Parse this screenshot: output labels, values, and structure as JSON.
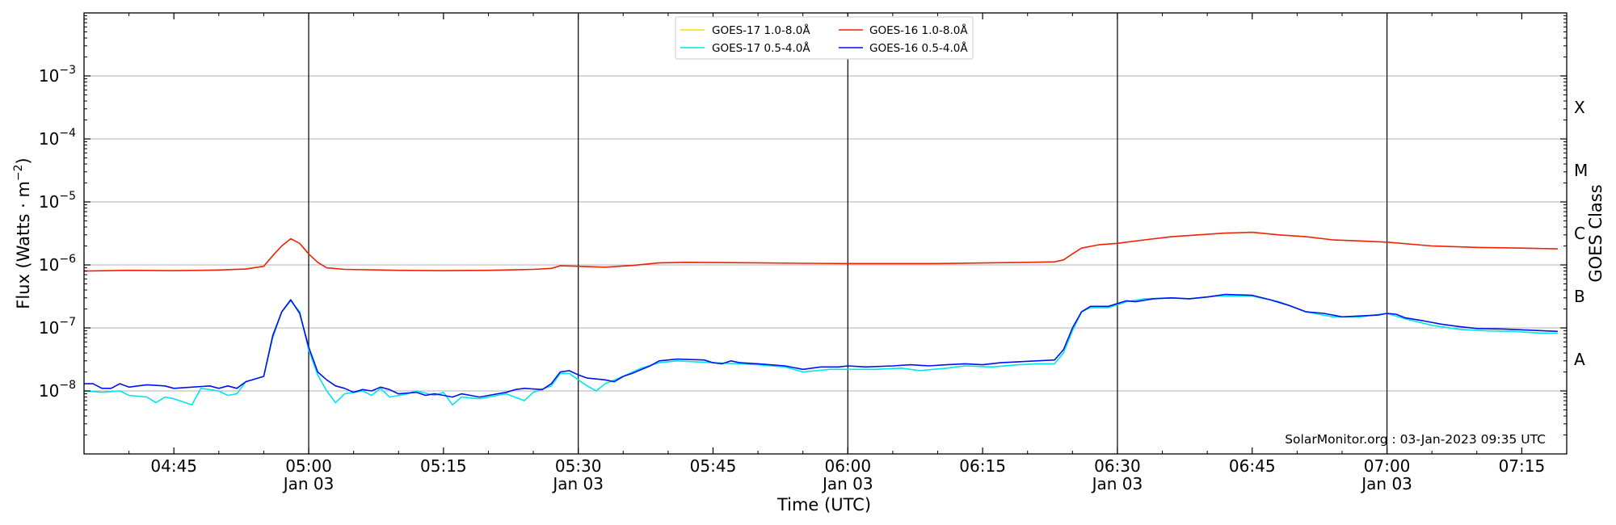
{
  "chart_data": {
    "type": "line",
    "x_start": "04:35",
    "x_end": "07:20",
    "xlim": [
      "2023-01-03 04:35",
      "2023-01-03 07:20"
    ],
    "ylim": [
      1e-09,
      0.01
    ],
    "yscale": "log",
    "ylabel": "Flux (Watts · m⁻²)",
    "ylabel_parts": [
      "Flux (Watts · m",
      "−2",
      ")"
    ],
    "xlabel": "Time (UTC)",
    "right_label": "GOES Class",
    "grid": "horizontal at decades",
    "legend_position": "top-center",
    "credit": "SolarMonitor.org : 03-Jan-2023 09:35 UTC",
    "x_ticks": [
      {
        "time": "04:45",
        "label": "04:45",
        "date": ""
      },
      {
        "time": "05:00",
        "label": "05:00",
        "date": "Jan 03"
      },
      {
        "time": "05:15",
        "label": "05:15",
        "date": ""
      },
      {
        "time": "05:30",
        "label": "05:30",
        "date": "Jan 03"
      },
      {
        "time": "05:45",
        "label": "05:45",
        "date": ""
      },
      {
        "time": "06:00",
        "label": "06:00",
        "date": "Jan 03"
      },
      {
        "time": "06:15",
        "label": "06:15",
        "date": ""
      },
      {
        "time": "06:30",
        "label": "06:30",
        "date": "Jan 03"
      },
      {
        "time": "06:45",
        "label": "06:45",
        "date": ""
      },
      {
        "time": "07:00",
        "label": "07:00",
        "date": "Jan 03"
      },
      {
        "time": "07:15",
        "label": "07:15",
        "date": ""
      }
    ],
    "day_lines": [
      "05:00",
      "05:30",
      "06:00",
      "06:30",
      "07:00"
    ],
    "y_ticks": [
      {
        "value": 0.001,
        "base": "10",
        "exp": "−3"
      },
      {
        "value": 0.0001,
        "base": "10",
        "exp": "−4"
      },
      {
        "value": 1e-05,
        "base": "10",
        "exp": "−5"
      },
      {
        "value": 1e-06,
        "base": "10",
        "exp": "−6"
      },
      {
        "value": 1e-07,
        "base": "10",
        "exp": "−7"
      },
      {
        "value": 1e-08,
        "base": "10",
        "exp": "−8"
      }
    ],
    "goes_classes": [
      {
        "label": "X",
        "value": 0.000316
      },
      {
        "label": "M",
        "value": 3.16e-05
      },
      {
        "label": "C",
        "value": 3.16e-06
      },
      {
        "label": "B",
        "value": 3.16e-07
      },
      {
        "label": "A",
        "value": 3.16e-08
      }
    ],
    "series": [
      {
        "name": "GOES-17 1.0-8.0Å",
        "color": "#ffd700",
        "points": []
      },
      {
        "name": "GOES-17 0.5-4.0Å",
        "color": "#00e5ee",
        "points": [
          [
            "04:35",
            1e-08
          ],
          [
            "04:37",
            9.5e-09
          ],
          [
            "04:39",
            1e-08
          ],
          [
            "04:40",
            8.5e-09
          ],
          [
            "04:42",
            8e-09
          ],
          [
            "04:43",
            6.5e-09
          ],
          [
            "04:44",
            8e-09
          ],
          [
            "04:45",
            7.5e-09
          ],
          [
            "04:47",
            6e-09
          ],
          [
            "04:48",
            1.1e-08
          ],
          [
            "04:50",
            1e-08
          ],
          [
            "04:51",
            8.5e-09
          ],
          [
            "04:52",
            9e-09
          ],
          [
            "04:53",
            1.4e-08
          ],
          [
            "04:55",
            1.7e-08
          ],
          [
            "04:56",
            7e-08
          ],
          [
            "04:57",
            1.8e-07
          ],
          [
            "04:58",
            2.7e-07
          ],
          [
            "04:59",
            1.8e-07
          ],
          [
            "05:00",
            4.5e-08
          ],
          [
            "05:01",
            1.8e-08
          ],
          [
            "05:02",
            1e-08
          ],
          [
            "05:03",
            6.5e-09
          ],
          [
            "05:04",
            9e-09
          ],
          [
            "05:06",
            1e-08
          ],
          [
            "05:07",
            8.5e-09
          ],
          [
            "05:08",
            1.1e-08
          ],
          [
            "05:09",
            8e-09
          ],
          [
            "05:11",
            9e-09
          ],
          [
            "05:12",
            1e-08
          ],
          [
            "05:14",
            8.5e-09
          ],
          [
            "05:15",
            9.5e-09
          ],
          [
            "05:16",
            6e-09
          ],
          [
            "05:17",
            8e-09
          ],
          [
            "05:19",
            7.5e-09
          ],
          [
            "05:21",
            8.5e-09
          ],
          [
            "05:22",
            9e-09
          ],
          [
            "05:24",
            7e-09
          ],
          [
            "05:25",
            9.5e-09
          ],
          [
            "05:27",
            1.2e-08
          ],
          [
            "05:28",
            1.9e-08
          ],
          [
            "05:29",
            1.9e-08
          ],
          [
            "05:30",
            1.5e-08
          ],
          [
            "05:31",
            1.2e-08
          ],
          [
            "05:32",
            1e-08
          ],
          [
            "05:33",
            1.3e-08
          ],
          [
            "05:35",
            1.7e-08
          ],
          [
            "05:37",
            2.3e-08
          ],
          [
            "05:39",
            2.8e-08
          ],
          [
            "05:41",
            3e-08
          ],
          [
            "05:45",
            2.8e-08
          ],
          [
            "05:48",
            2.7e-08
          ],
          [
            "05:50",
            2.6e-08
          ],
          [
            "05:53",
            2.4e-08
          ],
          [
            "05:55",
            2e-08
          ],
          [
            "05:58",
            2.2e-08
          ],
          [
            "06:00",
            2.2e-08
          ],
          [
            "06:03",
            2.2e-08
          ],
          [
            "06:06",
            2.3e-08
          ],
          [
            "06:08",
            2.1e-08
          ],
          [
            "06:11",
            2.3e-08
          ],
          [
            "06:13",
            2.5e-08
          ],
          [
            "06:16",
            2.4e-08
          ],
          [
            "06:19",
            2.6e-08
          ],
          [
            "06:21",
            2.7e-08
          ],
          [
            "06:23",
            2.7e-08
          ],
          [
            "06:24",
            4e-08
          ],
          [
            "06:25",
            9e-08
          ],
          [
            "06:26",
            1.8e-07
          ],
          [
            "06:27",
            2.1e-07
          ],
          [
            "06:29",
            2.1e-07
          ],
          [
            "06:31",
            2.6e-07
          ],
          [
            "06:33",
            2.9e-07
          ],
          [
            "06:36",
            3e-07
          ],
          [
            "06:38",
            2.9e-07
          ],
          [
            "06:41",
            3.2e-07
          ],
          [
            "06:45",
            3.2e-07
          ],
          [
            "06:48",
            2.6e-07
          ],
          [
            "06:51",
            1.8e-07
          ],
          [
            "06:54",
            1.5e-07
          ],
          [
            "06:57",
            1.5e-07
          ],
          [
            "07:00",
            1.7e-07
          ],
          [
            "07:02",
            1.4e-07
          ],
          [
            "07:05",
            1.1e-07
          ],
          [
            "07:08",
            9.5e-08
          ],
          [
            "07:11",
            9e-08
          ],
          [
            "07:14",
            8.8e-08
          ],
          [
            "07:17",
            8.3e-08
          ],
          [
            "07:19",
            8.2e-08
          ]
        ]
      },
      {
        "name": "GOES-16 1.0-8.0Å",
        "color": "#ee2200",
        "points": [
          [
            "04:35",
            8e-07
          ],
          [
            "04:40",
            8.2e-07
          ],
          [
            "04:45",
            8.1e-07
          ],
          [
            "04:50",
            8.3e-07
          ],
          [
            "04:53",
            8.6e-07
          ],
          [
            "04:55",
            9.5e-07
          ],
          [
            "04:56",
            1.4e-06
          ],
          [
            "04:57",
            2e-06
          ],
          [
            "04:58",
            2.6e-06
          ],
          [
            "04:59",
            2.2e-06
          ],
          [
            "05:00",
            1.5e-06
          ],
          [
            "05:01",
            1.1e-06
          ],
          [
            "05:02",
            9e-07
          ],
          [
            "05:04",
            8.5e-07
          ],
          [
            "05:10",
            8.2e-07
          ],
          [
            "05:15",
            8.1e-07
          ],
          [
            "05:20",
            8.2e-07
          ],
          [
            "05:25",
            8.5e-07
          ],
          [
            "05:27",
            8.8e-07
          ],
          [
            "05:28",
            9.7e-07
          ],
          [
            "05:30",
            9.5e-07
          ],
          [
            "05:33",
            9.2e-07
          ],
          [
            "05:36",
            9.8e-07
          ],
          [
            "05:39",
            1.08e-06
          ],
          [
            "05:42",
            1.1e-06
          ],
          [
            "05:50",
            1.08e-06
          ],
          [
            "05:55",
            1.06e-06
          ],
          [
            "06:00",
            1.05e-06
          ],
          [
            "06:10",
            1.05e-06
          ],
          [
            "06:20",
            1.1e-06
          ],
          [
            "06:23",
            1.12e-06
          ],
          [
            "06:24",
            1.2e-06
          ],
          [
            "06:25",
            1.5e-06
          ],
          [
            "06:26",
            1.85e-06
          ],
          [
            "06:28",
            2.1e-06
          ],
          [
            "06:30",
            2.2e-06
          ],
          [
            "06:33",
            2.5e-06
          ],
          [
            "06:36",
            2.8e-06
          ],
          [
            "06:39",
            3e-06
          ],
          [
            "06:42",
            3.2e-06
          ],
          [
            "06:45",
            3.3e-06
          ],
          [
            "06:48",
            3e-06
          ],
          [
            "06:51",
            2.8e-06
          ],
          [
            "06:54",
            2.5e-06
          ],
          [
            "06:57",
            2.4e-06
          ],
          [
            "07:00",
            2.3e-06
          ],
          [
            "07:05",
            2e-06
          ],
          [
            "07:10",
            1.9e-06
          ],
          [
            "07:15",
            1.85e-06
          ],
          [
            "07:19",
            1.8e-06
          ]
        ]
      },
      {
        "name": "GOES-16 0.5-4.0Å",
        "color": "#0011ee",
        "points": [
          [
            "04:35",
            1.3e-08
          ],
          [
            "04:36",
            1.3e-08
          ],
          [
            "04:37",
            1.1e-08
          ],
          [
            "04:38",
            1.1e-08
          ],
          [
            "04:39",
            1.3e-08
          ],
          [
            "04:40",
            1.15e-08
          ],
          [
            "04:41",
            1.2e-08
          ],
          [
            "04:42",
            1.25e-08
          ],
          [
            "04:44",
            1.2e-08
          ],
          [
            "04:45",
            1.1e-08
          ],
          [
            "04:47",
            1.15e-08
          ],
          [
            "04:49",
            1.2e-08
          ],
          [
            "04:50",
            1.1e-08
          ],
          [
            "04:51",
            1.2e-08
          ],
          [
            "04:52",
            1.1e-08
          ],
          [
            "04:53",
            1.4e-08
          ],
          [
            "04:55",
            1.7e-08
          ],
          [
            "04:56",
            7.5e-08
          ],
          [
            "04:57",
            1.8e-07
          ],
          [
            "04:58",
            2.8e-07
          ],
          [
            "04:59",
            1.7e-07
          ],
          [
            "05:00",
            5e-08
          ],
          [
            "05:01",
            2e-08
          ],
          [
            "05:02",
            1.5e-08
          ],
          [
            "05:03",
            1.2e-08
          ],
          [
            "05:04",
            1.1e-08
          ],
          [
            "05:05",
            9.5e-09
          ],
          [
            "05:06",
            1.05e-08
          ],
          [
            "05:07",
            1e-08
          ],
          [
            "05:08",
            1.15e-08
          ],
          [
            "05:09",
            1.05e-08
          ],
          [
            "05:10",
            9e-09
          ],
          [
            "05:12",
            9.5e-09
          ],
          [
            "05:13",
            8.5e-09
          ],
          [
            "05:14",
            9e-09
          ],
          [
            "05:15",
            8.5e-09
          ],
          [
            "05:16",
            8e-09
          ],
          [
            "05:17",
            9e-09
          ],
          [
            "05:18",
            8.5e-09
          ],
          [
            "05:19",
            8e-09
          ],
          [
            "05:21",
            9e-09
          ],
          [
            "05:22",
            9.5e-09
          ],
          [
            "05:23",
            1.05e-08
          ],
          [
            "05:24",
            1.1e-08
          ],
          [
            "05:26",
            1.05e-08
          ],
          [
            "05:27",
            1.3e-08
          ],
          [
            "05:28",
            2e-08
          ],
          [
            "05:29",
            2.1e-08
          ],
          [
            "05:30",
            1.8e-08
          ],
          [
            "05:31",
            1.6e-08
          ],
          [
            "05:33",
            1.5e-08
          ],
          [
            "05:34",
            1.4e-08
          ],
          [
            "05:35",
            1.7e-08
          ],
          [
            "05:36",
            1.9e-08
          ],
          [
            "05:38",
            2.5e-08
          ],
          [
            "05:39",
            3e-08
          ],
          [
            "05:41",
            3.2e-08
          ],
          [
            "05:44",
            3.1e-08
          ],
          [
            "05:45",
            2.8e-08
          ],
          [
            "05:46",
            2.7e-08
          ],
          [
            "05:47",
            3e-08
          ],
          [
            "05:48",
            2.8e-08
          ],
          [
            "05:50",
            2.7e-08
          ],
          [
            "05:53",
            2.5e-08
          ],
          [
            "05:55",
            2.2e-08
          ],
          [
            "05:57",
            2.4e-08
          ],
          [
            "05:59",
            2.4e-08
          ],
          [
            "06:00",
            2.5e-08
          ],
          [
            "06:02",
            2.4e-08
          ],
          [
            "06:05",
            2.5e-08
          ],
          [
            "06:07",
            2.6e-08
          ],
          [
            "06:09",
            2.5e-08
          ],
          [
            "06:11",
            2.6e-08
          ],
          [
            "06:13",
            2.7e-08
          ],
          [
            "06:15",
            2.6e-08
          ],
          [
            "06:17",
            2.8e-08
          ],
          [
            "06:19",
            2.9e-08
          ],
          [
            "06:21",
            3e-08
          ],
          [
            "06:23",
            3.1e-08
          ],
          [
            "06:24",
            4.5e-08
          ],
          [
            "06:25",
            1e-07
          ],
          [
            "06:26",
            1.8e-07
          ],
          [
            "06:27",
            2.2e-07
          ],
          [
            "06:29",
            2.2e-07
          ],
          [
            "06:31",
            2.7e-07
          ],
          [
            "06:32",
            2.6e-07
          ],
          [
            "06:34",
            2.9e-07
          ],
          [
            "06:36",
            3e-07
          ],
          [
            "06:38",
            2.9e-07
          ],
          [
            "06:40",
            3.1e-07
          ],
          [
            "06:42",
            3.4e-07
          ],
          [
            "06:45",
            3.3e-07
          ],
          [
            "06:47",
            2.8e-07
          ],
          [
            "06:49",
            2.3e-07
          ],
          [
            "06:51",
            1.8e-07
          ],
          [
            "06:53",
            1.7e-07
          ],
          [
            "06:55",
            1.5e-07
          ],
          [
            "06:57",
            1.55e-07
          ],
          [
            "06:59",
            1.6e-07
          ],
          [
            "07:00",
            1.7e-07
          ],
          [
            "07:01",
            1.65e-07
          ],
          [
            "07:02",
            1.45e-07
          ],
          [
            "07:04",
            1.3e-07
          ],
          [
            "07:06",
            1.15e-07
          ],
          [
            "07:08",
            1.05e-07
          ],
          [
            "07:10",
            9.8e-08
          ],
          [
            "07:13",
            9.6e-08
          ],
          [
            "07:16",
            9.2e-08
          ],
          [
            "07:19",
            8.8e-08
          ]
        ]
      }
    ]
  }
}
